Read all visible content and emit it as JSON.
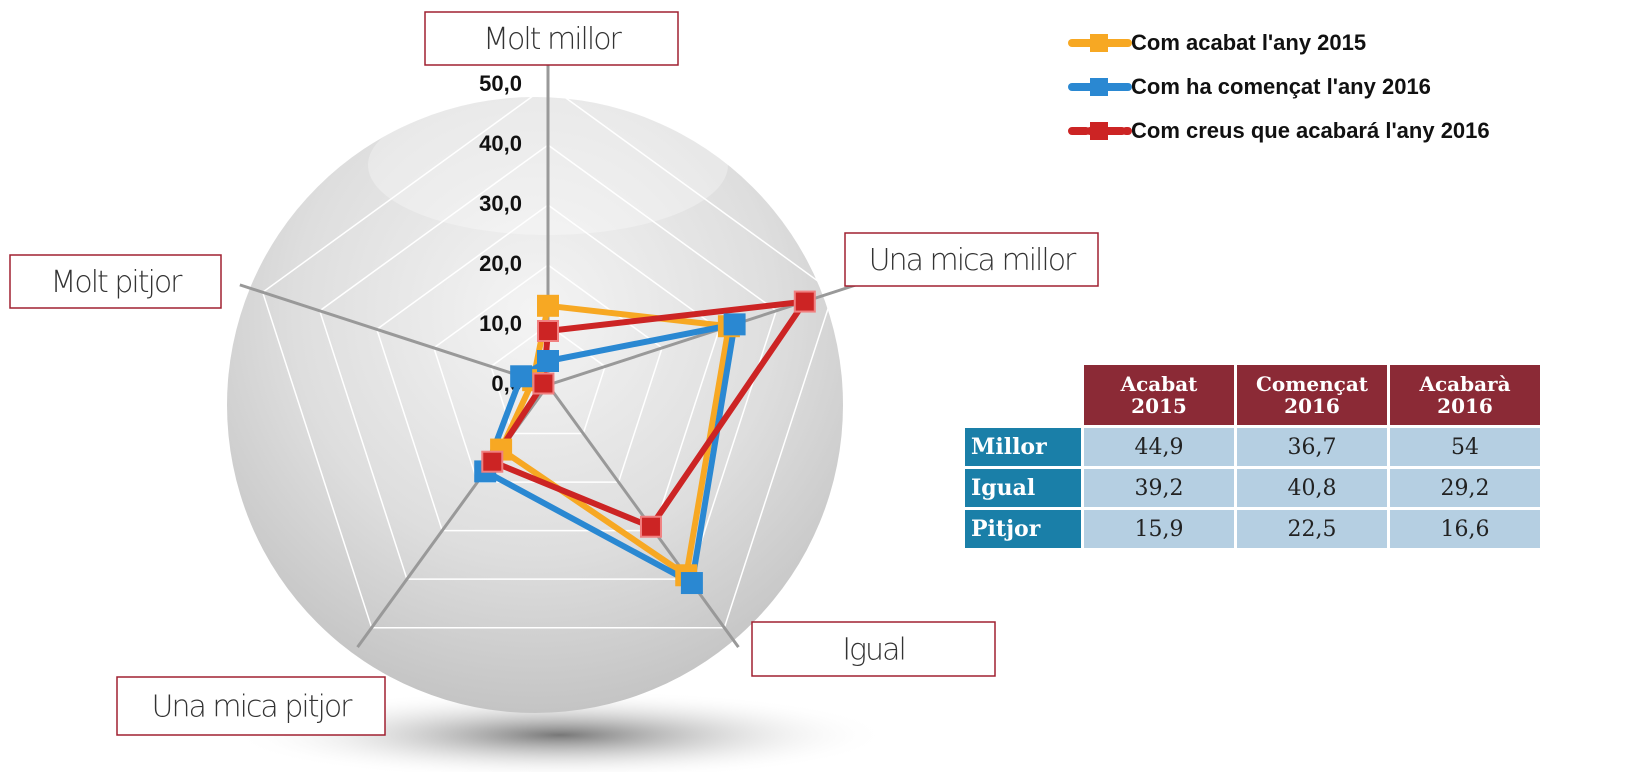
{
  "chart_data": {
    "type": "radar",
    "categories": [
      "Molt millor",
      "Una mica millor",
      "Igual",
      "Una mica pitjor",
      "Molt pitjor"
    ],
    "series": [
      {
        "name": "Com acabat l'any 2015",
        "color": "#f7a823",
        "values": [
          13.2,
          31.7,
          39.2,
          13.3,
          2.6
        ]
      },
      {
        "name": "Com ha començat l'any 2016",
        "color": "#2a88d2",
        "values": [
          4.0,
          32.7,
          40.8,
          17.8,
          4.7
        ]
      },
      {
        "name": "Com creus que acabará l'any 2016",
        "color": "#cc2424",
        "values": [
          9.0,
          45.0,
          29.2,
          15.8,
          0.8
        ]
      }
    ],
    "ylim": [
      0,
      50
    ],
    "yticks": [
      {
        "value": 0,
        "label": "0,0"
      },
      {
        "value": 10,
        "label": "10,0"
      },
      {
        "value": 20,
        "label": "20,0"
      },
      {
        "value": 30,
        "label": "30,0"
      },
      {
        "value": 40,
        "label": "40,0"
      },
      {
        "value": 50,
        "label": "50,0"
      }
    ],
    "grid": true,
    "legend": "top-right"
  },
  "table": {
    "columns": [
      "Acabat 2015",
      "Començat 2016",
      "Acabarà 2016"
    ],
    "rows": [
      [
        "Millor",
        "44,9",
        "36,7",
        "54"
      ],
      [
        "Igual",
        "39,2",
        "40,8",
        "29,2"
      ],
      [
        "Pitjor",
        "15,9",
        "22,5",
        "16,6"
      ]
    ]
  }
}
